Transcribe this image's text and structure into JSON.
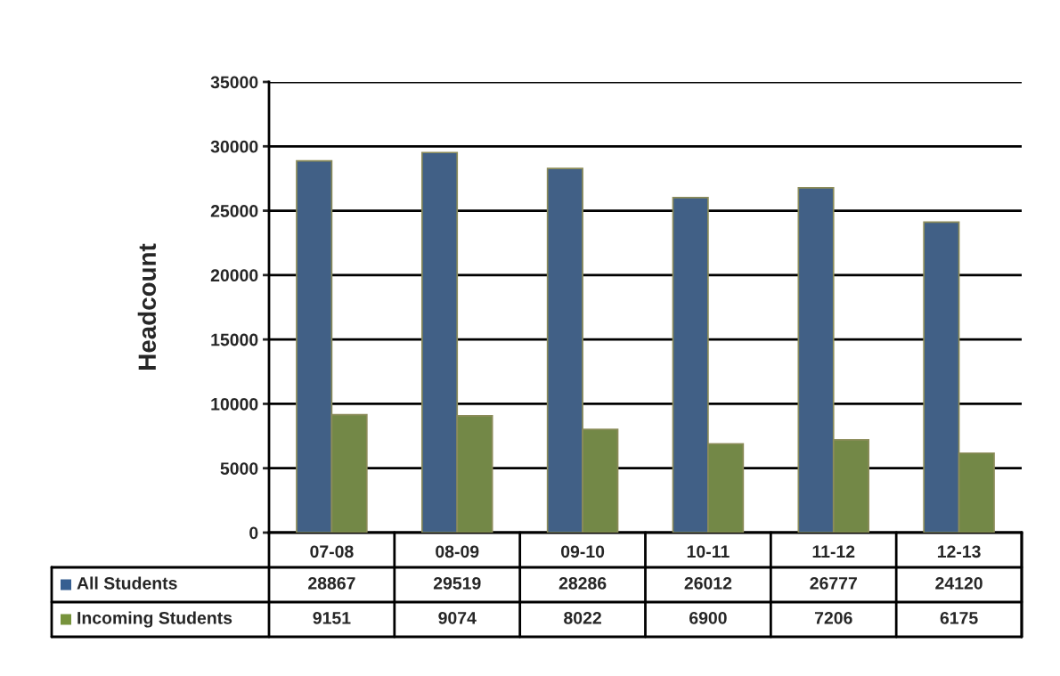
{
  "chart_data": {
    "type": "bar",
    "ylabel": "Headcount",
    "categories": [
      "07-08",
      "08-09",
      "09-10",
      "10-11",
      "11-12",
      "12-13"
    ],
    "series": [
      {
        "name": "All Students",
        "color": "#365f91",
        "values": [
          28867,
          29519,
          28286,
          26012,
          26777,
          24120
        ]
      },
      {
        "name": "Incoming Students",
        "color": "#77933c",
        "values": [
          9151,
          9074,
          8022,
          6900,
          7206,
          6175
        ]
      }
    ],
    "ylim": [
      0,
      35000
    ],
    "yticks": [
      0,
      5000,
      10000,
      15000,
      20000,
      25000,
      30000,
      35000
    ],
    "grid": "y",
    "data_labels": true,
    "legend": "bottom"
  }
}
